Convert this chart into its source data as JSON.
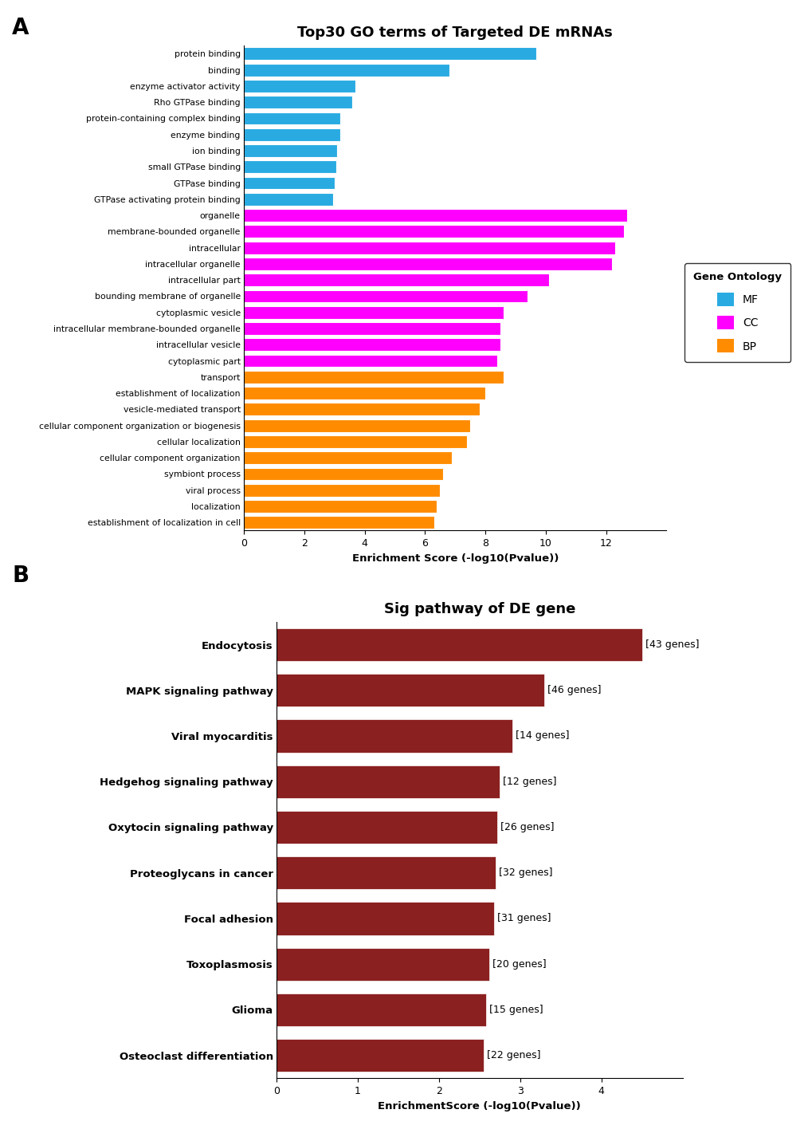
{
  "panel_A": {
    "title": "Top30 GO terms of Targeted DE mRNAs",
    "xlabel": "Enrichment Score (-log10(Pvalue))",
    "xlim": [
      0,
      14
    ],
    "xticks": [
      0,
      2,
      4,
      6,
      8,
      10,
      12
    ],
    "categories": [
      "protein binding",
      "binding",
      "enzyme activator activity",
      "Rho GTPase binding",
      "protein-containing complex binding",
      "enzyme binding",
      "ion binding",
      "small GTPase binding",
      "GTPase binding",
      "GTPase activating protein binding",
      "organelle",
      "membrane-bounded organelle",
      "intracellular",
      "intracellular organelle",
      "intracellular part",
      "bounding membrane of organelle",
      "cytoplasmic vesicle",
      "intracellular membrane-bounded organelle",
      "intracellular vesicle",
      "cytoplasmic part",
      "transport",
      "establishment of localization",
      "vesicle-mediated transport",
      "cellular component organization or biogenesis",
      "cellular localization",
      "cellular component organization",
      "symbiont process",
      "viral process",
      "localization",
      "establishment of localization in cell"
    ],
    "values": [
      9.7,
      6.8,
      3.7,
      3.6,
      3.2,
      3.2,
      3.1,
      3.05,
      3.0,
      2.95,
      12.7,
      12.6,
      12.3,
      12.2,
      10.1,
      9.4,
      8.6,
      8.5,
      8.5,
      8.4,
      8.6,
      8.0,
      7.8,
      7.5,
      7.4,
      6.9,
      6.6,
      6.5,
      6.4,
      6.3
    ],
    "colors": [
      "#29ABE2",
      "#29ABE2",
      "#29ABE2",
      "#29ABE2",
      "#29ABE2",
      "#29ABE2",
      "#29ABE2",
      "#29ABE2",
      "#29ABE2",
      "#29ABE2",
      "#FF00FF",
      "#FF00FF",
      "#FF00FF",
      "#FF00FF",
      "#FF00FF",
      "#FF00FF",
      "#FF00FF",
      "#FF00FF",
      "#FF00FF",
      "#FF00FF",
      "#FF8C00",
      "#FF8C00",
      "#FF8C00",
      "#FF8C00",
      "#FF8C00",
      "#FF8C00",
      "#FF8C00",
      "#FF8C00",
      "#FF8C00",
      "#FF8C00"
    ],
    "legend_labels": [
      "MF",
      "CC",
      "BP"
    ],
    "legend_colors": [
      "#29ABE2",
      "#FF00FF",
      "#FF8C00"
    ]
  },
  "panel_B": {
    "title": "Sig pathway of DE gene",
    "xlabel": "EnrichmentScore (-log10(Pvalue))",
    "xlim": [
      0,
      5
    ],
    "xticks": [
      0,
      1,
      2,
      3,
      4
    ],
    "categories": [
      "Endocytosis",
      "MAPK signaling pathway",
      "Viral myocarditis",
      "Hedgehog signaling pathway",
      "Oxytocin signaling pathway",
      "Proteoglycans in cancer",
      "Focal adhesion",
      "Toxoplasmosis",
      "Glioma",
      "Osteoclast differentiation"
    ],
    "values": [
      4.5,
      3.3,
      2.9,
      2.75,
      2.72,
      2.7,
      2.68,
      2.62,
      2.58,
      2.55
    ],
    "gene_counts": [
      "[43 genes]",
      "[46 genes]",
      "[14 genes]",
      "[12 genes]",
      "[26 genes]",
      "[32 genes]",
      "[31 genes]",
      "[20 genes]",
      "[15 genes]",
      "[22 genes]"
    ],
    "bar_color": "#8B2020"
  }
}
